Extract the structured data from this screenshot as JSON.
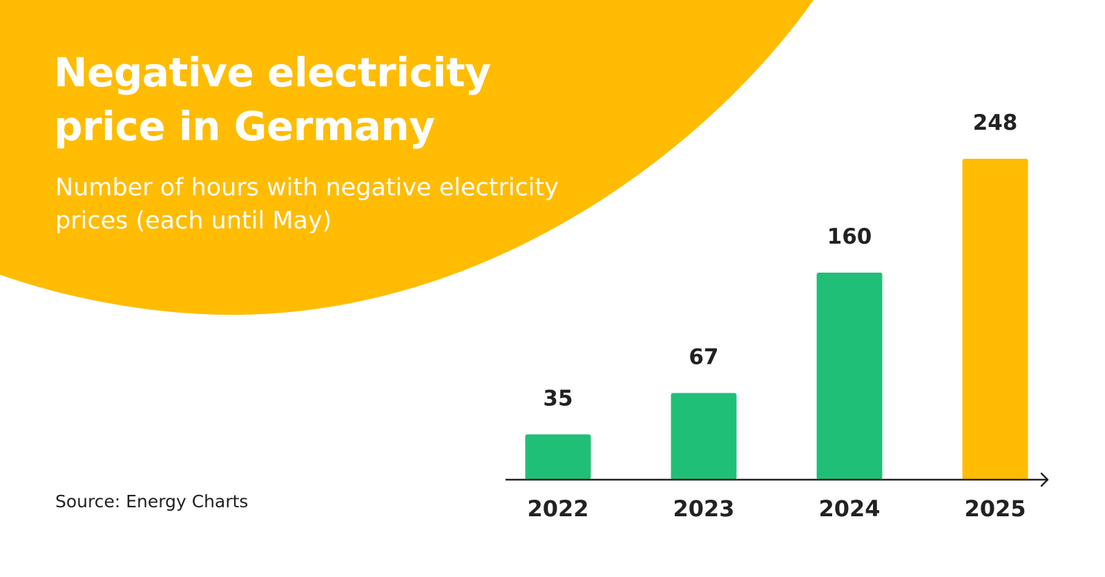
{
  "title": "Negative electricity price in Germany",
  "subtitle": "Number of hours with negative electricity prices (each until May)",
  "source": "Source: Energy Charts",
  "colors": {
    "accent_yellow": "#FFBC02",
    "bar_green": "#20BF78",
    "bar_highlight": "#FFBC02",
    "text_dark": "#222222",
    "text_light": "#FFFFFF"
  },
  "chart_data": {
    "type": "bar",
    "title": "Negative electricity price in Germany",
    "subtitle": "Number of hours with negative electricity prices (each until May)",
    "categories": [
      "2022",
      "2023",
      "2024",
      "2025"
    ],
    "values": [
      35,
      67,
      160,
      248
    ],
    "highlight_index": 3,
    "xlabel": "",
    "ylabel": "",
    "ylim": [
      0,
      248
    ],
    "grid": false,
    "data_labels": true,
    "legend": "none"
  }
}
